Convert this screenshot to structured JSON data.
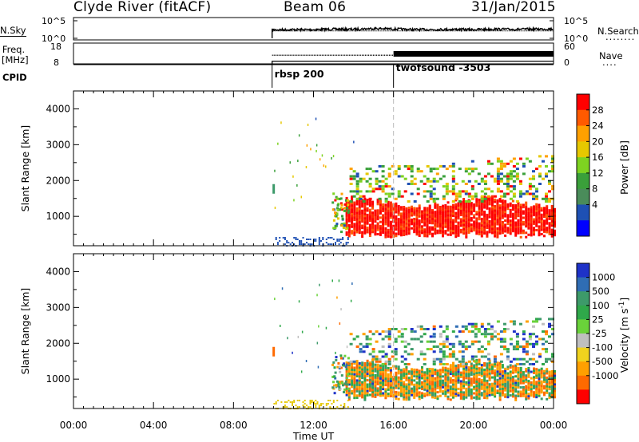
{
  "header": {
    "title": "Clyde River (fitACF)",
    "beam": "Beam 06",
    "date": "31/Jan/2015"
  },
  "side_labels": {
    "nsky_top": "N.Sky",
    "freq_top": "Freq.",
    "freq_unit": "[MHz]",
    "cpid": "CPID",
    "nsearch": "N.Search",
    "nsearch_marker": "........",
    "nave": "Nave",
    "nave_marker": "...."
  },
  "noise_panel": {
    "left_ticks": [
      "10^5",
      "10^0"
    ],
    "right_ticks": [
      "10^5",
      "10^0"
    ]
  },
  "freq_panel": {
    "left_ticks": [
      "18",
      "8"
    ],
    "right_ticks": [
      "60",
      "0"
    ]
  },
  "cpid_panel": {
    "labels": [
      {
        "text": "rbsp 200",
        "start_hour": 9.93
      },
      {
        "text": "twofsound -3503",
        "start_hour": 16.0
      }
    ]
  },
  "colorbars": {
    "power": {
      "label": "Power [dB]",
      "ticks": [
        "28",
        "24",
        "20",
        "16",
        "12",
        "8",
        "4"
      ],
      "colors": [
        "#ff0000",
        "#ff5a00",
        "#ffa000",
        "#e6c800",
        "#7ed321",
        "#3aa03a",
        "#4a8c5a",
        "#1e50b4",
        "#0000ff"
      ]
    },
    "velocity": {
      "label": "Velocity [m s^-1]",
      "ticks": [
        "1000",
        "500",
        "100",
        "25",
        "-25",
        "-100",
        "-500",
        "-1000"
      ],
      "colors": [
        "#1e32c8",
        "#2f6db4",
        "#3d9a6a",
        "#2fa84a",
        "#6ad23a",
        "#bfbfbf",
        "#f0d21e",
        "#ffa000",
        "#ff6a00",
        "#ff0000"
      ]
    }
  },
  "chart_data": [
    {
      "type": "line",
      "panel": "noise",
      "series": [
        {
          "name": "N.Sky",
          "x": [
            9.93,
            11,
            12,
            13,
            14,
            15,
            16,
            17,
            18,
            19,
            20,
            21,
            22,
            23,
            24
          ],
          "y": [
            250,
            300,
            280,
            400,
            350,
            600,
            450,
            300,
            320,
            350,
            300,
            400,
            350,
            400,
            450
          ]
        }
      ],
      "ylog": true,
      "ylim": [
        1,
        100000
      ]
    },
    {
      "type": "line",
      "panel": "frequency",
      "series": [
        {
          "name": "Freq.",
          "x": [
            9.93,
            16,
            16,
            24
          ],
          "y": [
            11.5,
            11.5,
            11.5,
            11.5
          ]
        },
        {
          "name": "Nave",
          "x": [
            9.93,
            16,
            16,
            24
          ],
          "y": [
            25,
            25,
            30,
            30
          ]
        }
      ],
      "ylim": [
        8,
        18
      ]
    },
    {
      "type": "heatmap",
      "panel": "power",
      "xlabel": "",
      "ylabel": "Slant Range [km]",
      "xlim": [
        0,
        24
      ],
      "ylim": [
        180,
        4500
      ],
      "x_ticks": [
        "00:00",
        "04:00",
        "08:00",
        "12:00",
        "16:00",
        "20:00",
        "00:00"
      ],
      "y_ticks": [
        1000,
        2000,
        3000,
        4000
      ],
      "data_start_hour": 9.93
    },
    {
      "type": "heatmap",
      "panel": "velocity",
      "xlabel": "Time UT",
      "ylabel": "Slant Range [km]",
      "xlim": [
        0,
        24
      ],
      "ylim": [
        180,
        4500
      ],
      "x_ticks": [
        "00:00",
        "04:00",
        "08:00",
        "12:00",
        "16:00",
        "20:00",
        "00:00"
      ],
      "y_ticks": [
        1000,
        2000,
        3000,
        4000
      ],
      "data_start_hour": 9.93
    }
  ]
}
